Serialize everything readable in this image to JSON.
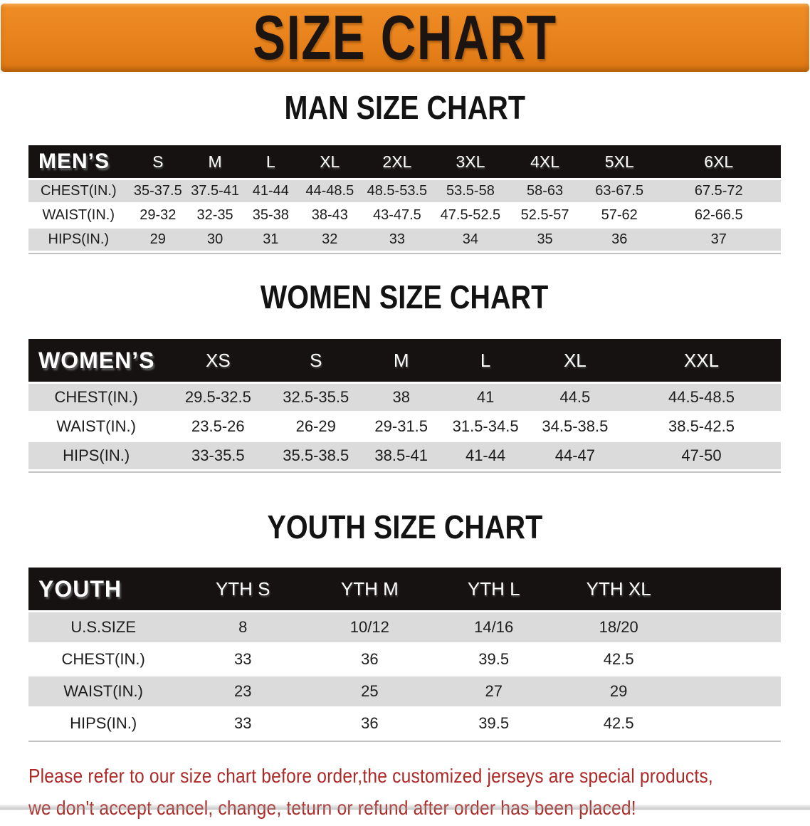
{
  "banner": {
    "title": "SIZE CHART"
  },
  "sections": [
    {
      "id": "men",
      "heading": "MAN SIZE CHART",
      "header_label": "MEN’S",
      "columns": [
        "S",
        "M",
        "L",
        "XL",
        "2XL",
        "3XL",
        "4XL",
        "5XL",
        "6XL"
      ],
      "rows": [
        {
          "label": "CHEST(IN.)",
          "values": [
            "35-37.5",
            "37.5-41",
            "41-44",
            "44-48.5",
            "48.5-53.5",
            "53.5-58",
            "58-63",
            "63-67.5",
            "67.5-72"
          ]
        },
        {
          "label": "WAIST(IN.)",
          "values": [
            "29-32",
            "32-35",
            "35-38",
            "38-43",
            "43-47.5",
            "47.5-52.5",
            "52.5-57",
            "57-62",
            "62-66.5"
          ]
        },
        {
          "label": "HIPS(IN.)",
          "values": [
            "29",
            "30",
            "31",
            "32",
            "33",
            "34",
            "35",
            "36",
            "37"
          ]
        }
      ]
    },
    {
      "id": "women",
      "heading": "WOMEN SIZE CHART",
      "header_label": "WOMEN’S",
      "columns": [
        "XS",
        "S",
        "M",
        "L",
        "XL",
        "XXL"
      ],
      "rows": [
        {
          "label": "CHEST(IN.)",
          "values": [
            "29.5-32.5",
            "32.5-35.5",
            "38",
            "41",
            "44.5",
            "44.5-48.5"
          ]
        },
        {
          "label": "WAIST(IN.)",
          "values": [
            "23.5-26",
            "26-29",
            "29-31.5",
            "31.5-34.5",
            "34.5-38.5",
            "38.5-42.5"
          ]
        },
        {
          "label": "HIPS(IN.)",
          "values": [
            "33-35.5",
            "35.5-38.5",
            "38.5-41",
            "41-44",
            "44-47",
            "47-50"
          ]
        }
      ]
    },
    {
      "id": "youth",
      "heading": "YOUTH SIZE CHART",
      "header_label": "YOUTH",
      "columns": [
        "YTH S",
        "YTH M",
        "YTH L",
        "YTH XL"
      ],
      "rows": [
        {
          "label": "U.S.SIZE",
          "values": [
            "8",
            "10/12",
            "14/16",
            "18/20"
          ]
        },
        {
          "label": "CHEST(IN.)",
          "values": [
            "33",
            "36",
            "39.5",
            "42.5"
          ]
        },
        {
          "label": "WAIST(IN.)",
          "values": [
            "23",
            "25",
            "27",
            "29"
          ]
        },
        {
          "label": "HIPS(IN.)",
          "values": [
            "33",
            "36",
            "39.5",
            "42.5"
          ]
        }
      ]
    }
  ],
  "footer": {
    "lines": [
      "Please refer to our size chart before order,the customized jerseys are special products,",
      "we don't accept cancel, change, teturn or refund after order has been placed!"
    ]
  },
  "colors": {
    "banner_orange": "#E8821C",
    "header_black": "#161212",
    "row_gray": "#DBDBDB",
    "note_red": "#AB2A27"
  }
}
